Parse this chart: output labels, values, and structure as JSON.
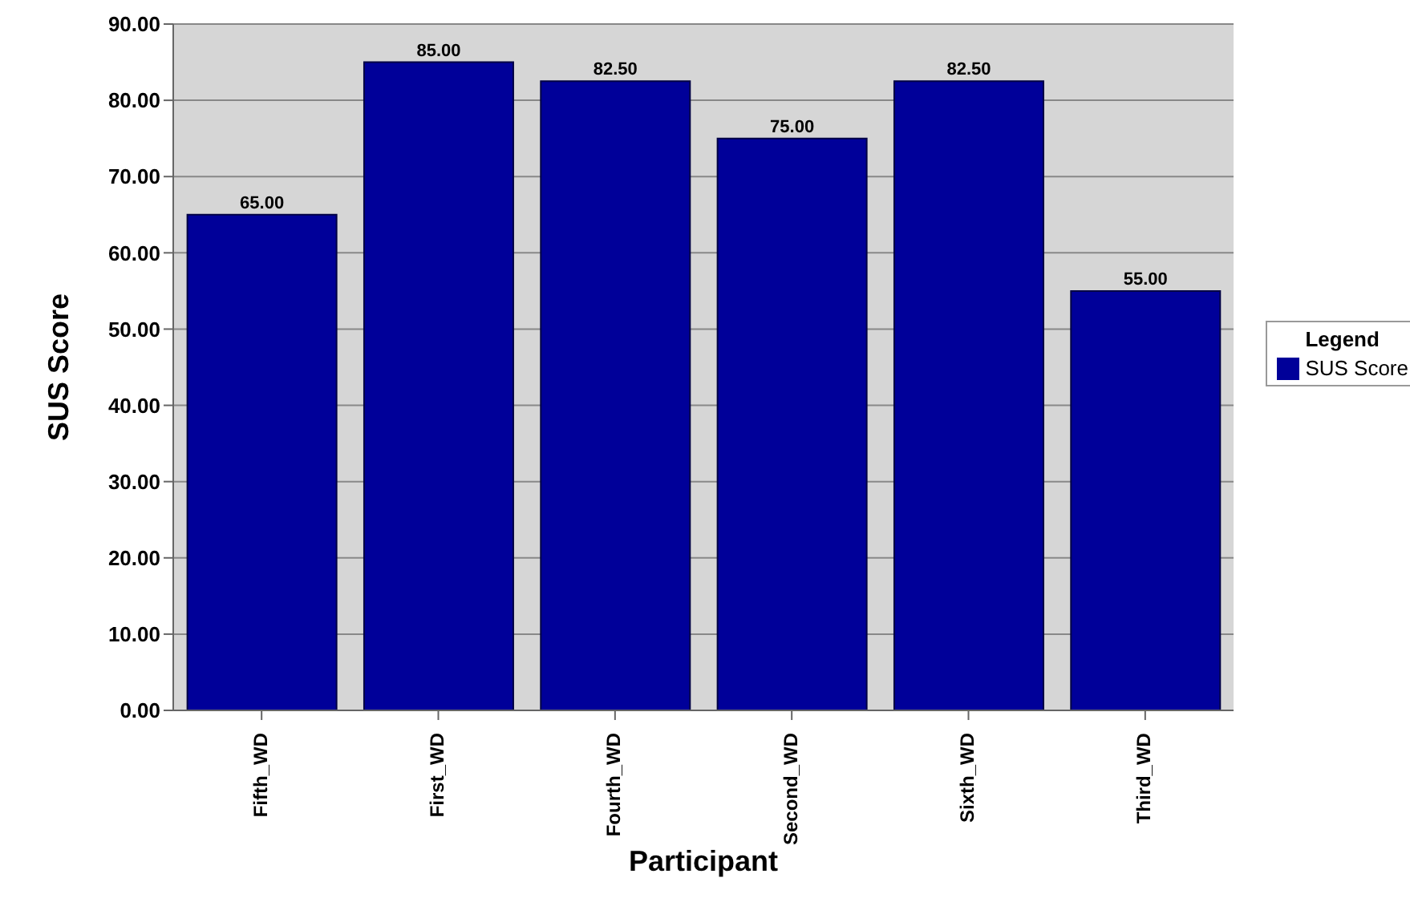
{
  "chart_data": {
    "type": "bar",
    "xlabel": "Participant",
    "ylabel": "SUS Score",
    "legend_title": "Legend",
    "categories": [
      "Fifth_WD",
      "First_WD",
      "Fourth_WD",
      "Second_WD",
      "Sixth_WD",
      "Third_WD"
    ],
    "series": [
      {
        "name": "SUS Score",
        "color": "#000099",
        "values": [
          65,
          85,
          82.5,
          75,
          82.5,
          55
        ],
        "value_labels": [
          "65.00",
          "85.00",
          "82.50",
          "75.00",
          "82.50",
          "55.00"
        ]
      }
    ],
    "ylim": [
      0,
      90
    ],
    "yticks": [
      {
        "value": 0,
        "label": "0.00"
      },
      {
        "value": 10,
        "label": "10.00"
      },
      {
        "value": 20,
        "label": "20.00"
      },
      {
        "value": 30,
        "label": "30.00"
      },
      {
        "value": 40,
        "label": "40.00"
      },
      {
        "value": 50,
        "label": "50.00"
      },
      {
        "value": 60,
        "label": "60.00"
      },
      {
        "value": 70,
        "label": "70.00"
      },
      {
        "value": 80,
        "label": "80.00"
      },
      {
        "value": 90,
        "label": "90.00"
      }
    ],
    "grid": "y",
    "legend": "right"
  }
}
